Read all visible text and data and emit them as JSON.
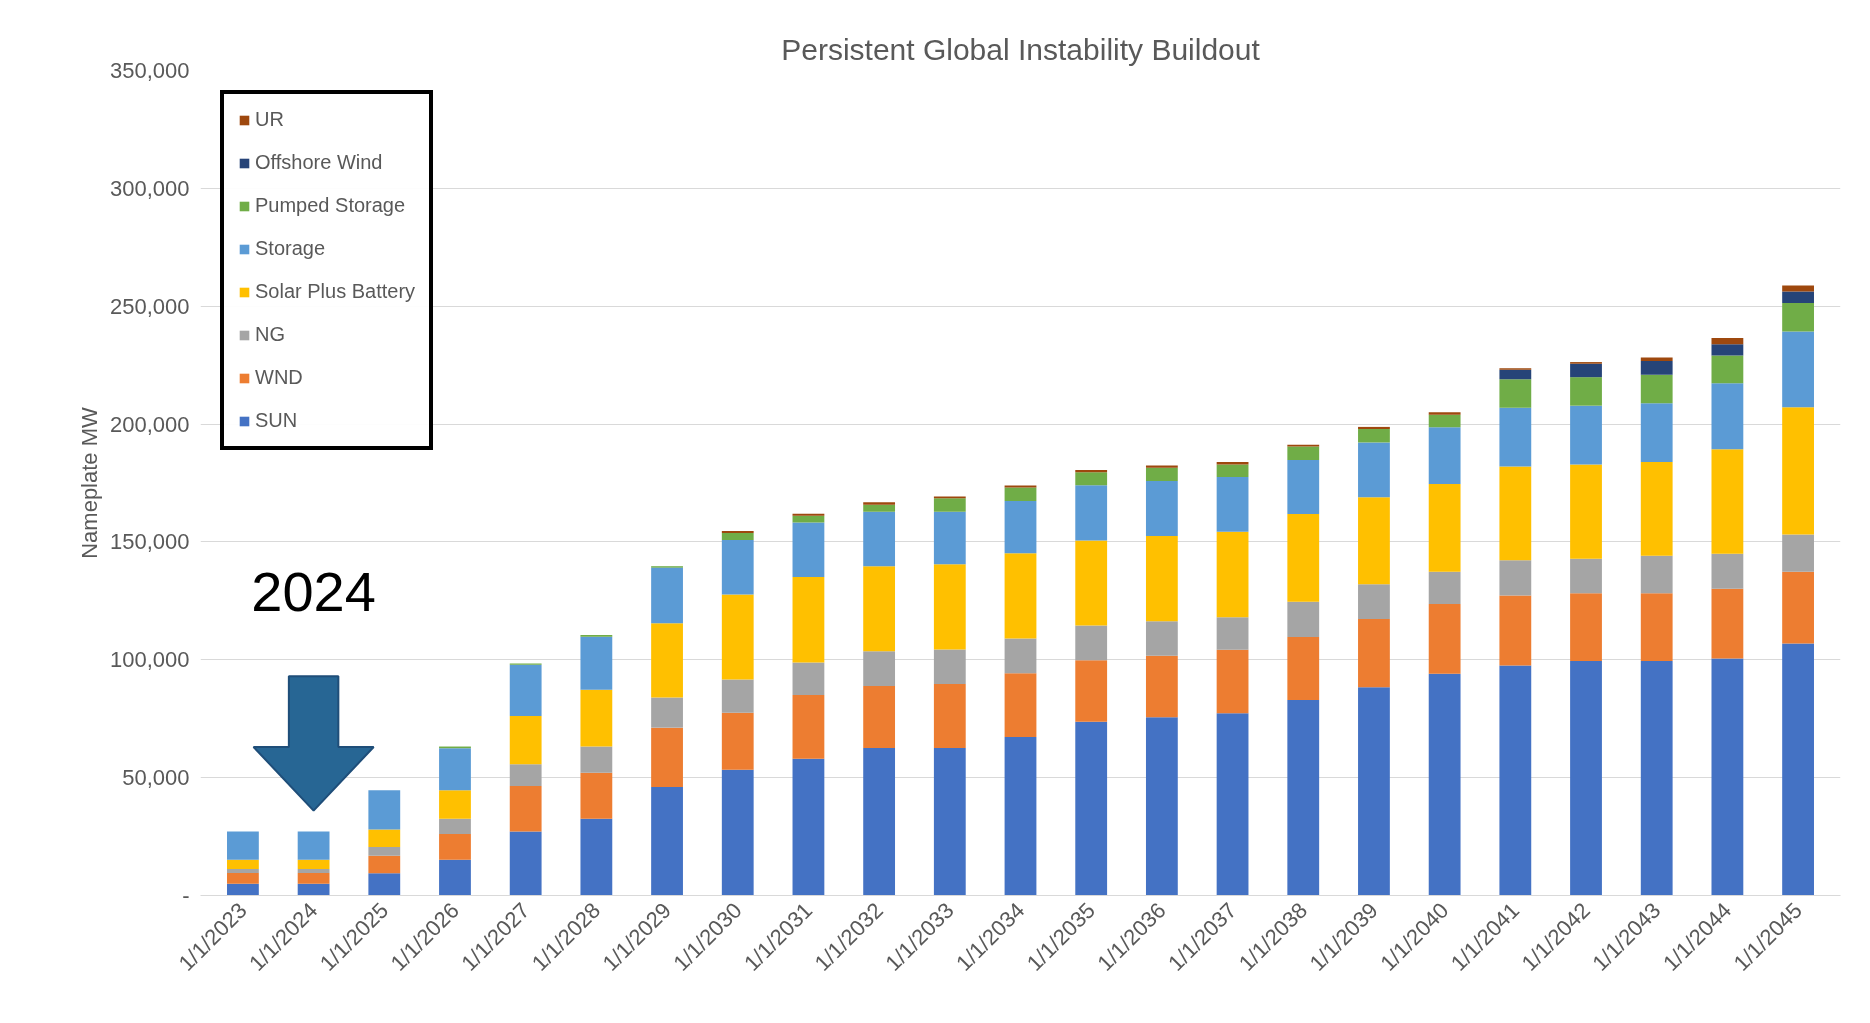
{
  "chart_data": {
    "type": "bar",
    "stacked": true,
    "title": "Persistent Global Instability Buildout",
    "ylabel": "Nameplate MW",
    "categories": [
      "1/1/2023",
      "1/1/2024",
      "1/1/2025",
      "1/1/2026",
      "1/1/2027",
      "1/1/2028",
      "1/1/2029",
      "1/1/2030",
      "1/1/2031",
      "1/1/2032",
      "1/1/2033",
      "1/1/2034",
      "1/1/2035",
      "1/1/2036",
      "1/1/2037",
      "1/1/2038",
      "1/1/2039",
      "1/1/2040",
      "1/1/2041",
      "1/1/2042",
      "1/1/2043",
      "1/1/2044",
      "1/1/2045"
    ],
    "series": [
      {
        "name": "SUN",
        "color": "#4472c4",
        "values": [
          5000,
          5000,
          9400,
          15200,
          27200,
          32600,
          46000,
          53400,
          58000,
          62600,
          62600,
          67200,
          73700,
          75600,
          77300,
          82900,
          88400,
          94100,
          97600,
          99500,
          99500,
          100500,
          106900
        ]
      },
      {
        "name": "WND",
        "color": "#ed7d31",
        "values": [
          4500,
          4500,
          7500,
          10900,
          19300,
          19500,
          25200,
          24100,
          27100,
          26300,
          27100,
          27100,
          26100,
          26100,
          27000,
          26800,
          28900,
          29600,
          29700,
          28700,
          28700,
          29600,
          30500
        ]
      },
      {
        "name": "NG",
        "color": "#a5a5a5",
        "values": [
          1700,
          1700,
          3700,
          6500,
          9200,
          11100,
          12800,
          14100,
          13800,
          14700,
          14700,
          14700,
          14700,
          14700,
          13700,
          14900,
          14700,
          13700,
          14900,
          14700,
          15900,
          14900,
          15700
        ]
      },
      {
        "name": "Solar Plus Battery",
        "color": "#ffc000",
        "values": [
          4000,
          4000,
          7400,
          12000,
          20400,
          24100,
          31500,
          36100,
          36200,
          36100,
          36100,
          36200,
          36100,
          36100,
          36300,
          37200,
          37000,
          37200,
          39800,
          40000,
          39800,
          44300,
          54000
        ]
      },
      {
        "name": "Storage",
        "color": "#5b9bd5",
        "values": [
          12000,
          12000,
          16600,
          17900,
          21800,
          22500,
          23600,
          23100,
          23100,
          23100,
          22300,
          22200,
          23400,
          23300,
          23200,
          23000,
          23200,
          24000,
          24900,
          24900,
          24900,
          28000,
          32200
        ]
      },
      {
        "name": "Pumped Storage",
        "color": "#70ad47",
        "values": [
          0,
          0,
          0,
          700,
          500,
          700,
          600,
          3000,
          2900,
          3000,
          5700,
          5700,
          5600,
          5700,
          5400,
          5700,
          5700,
          5400,
          12100,
          12100,
          12100,
          11800,
          12100
        ]
      },
      {
        "name": "Offshore Wind",
        "color": "#264478",
        "values": [
          0,
          0,
          0,
          0,
          0,
          0,
          0,
          0,
          0,
          0,
          0,
          0,
          0,
          0,
          0,
          0,
          0,
          0,
          4000,
          5700,
          5900,
          4800,
          4800
        ]
      },
      {
        "name": "UR",
        "color": "#9e480e",
        "values": [
          0,
          0,
          0,
          0,
          0,
          0,
          0,
          800,
          900,
          1000,
          800,
          800,
          900,
          900,
          1000,
          700,
          900,
          1000,
          700,
          700,
          1400,
          2600,
          2600
        ]
      }
    ],
    "ylim": [
      0,
      350000
    ],
    "yticks": [
      {
        "value": 0,
        "label": "-"
      },
      {
        "value": 50000,
        "label": "50,000"
      },
      {
        "value": 100000,
        "label": "100,000"
      },
      {
        "value": 150000,
        "label": "150,000"
      },
      {
        "value": 200000,
        "label": "200,000"
      },
      {
        "value": 250000,
        "label": "250,000"
      },
      {
        "value": 300000,
        "label": "300,000"
      },
      {
        "value": 350000,
        "label": "350,000"
      }
    ],
    "grid": "y",
    "legend": "top left",
    "annotations": [
      "2024"
    ]
  }
}
